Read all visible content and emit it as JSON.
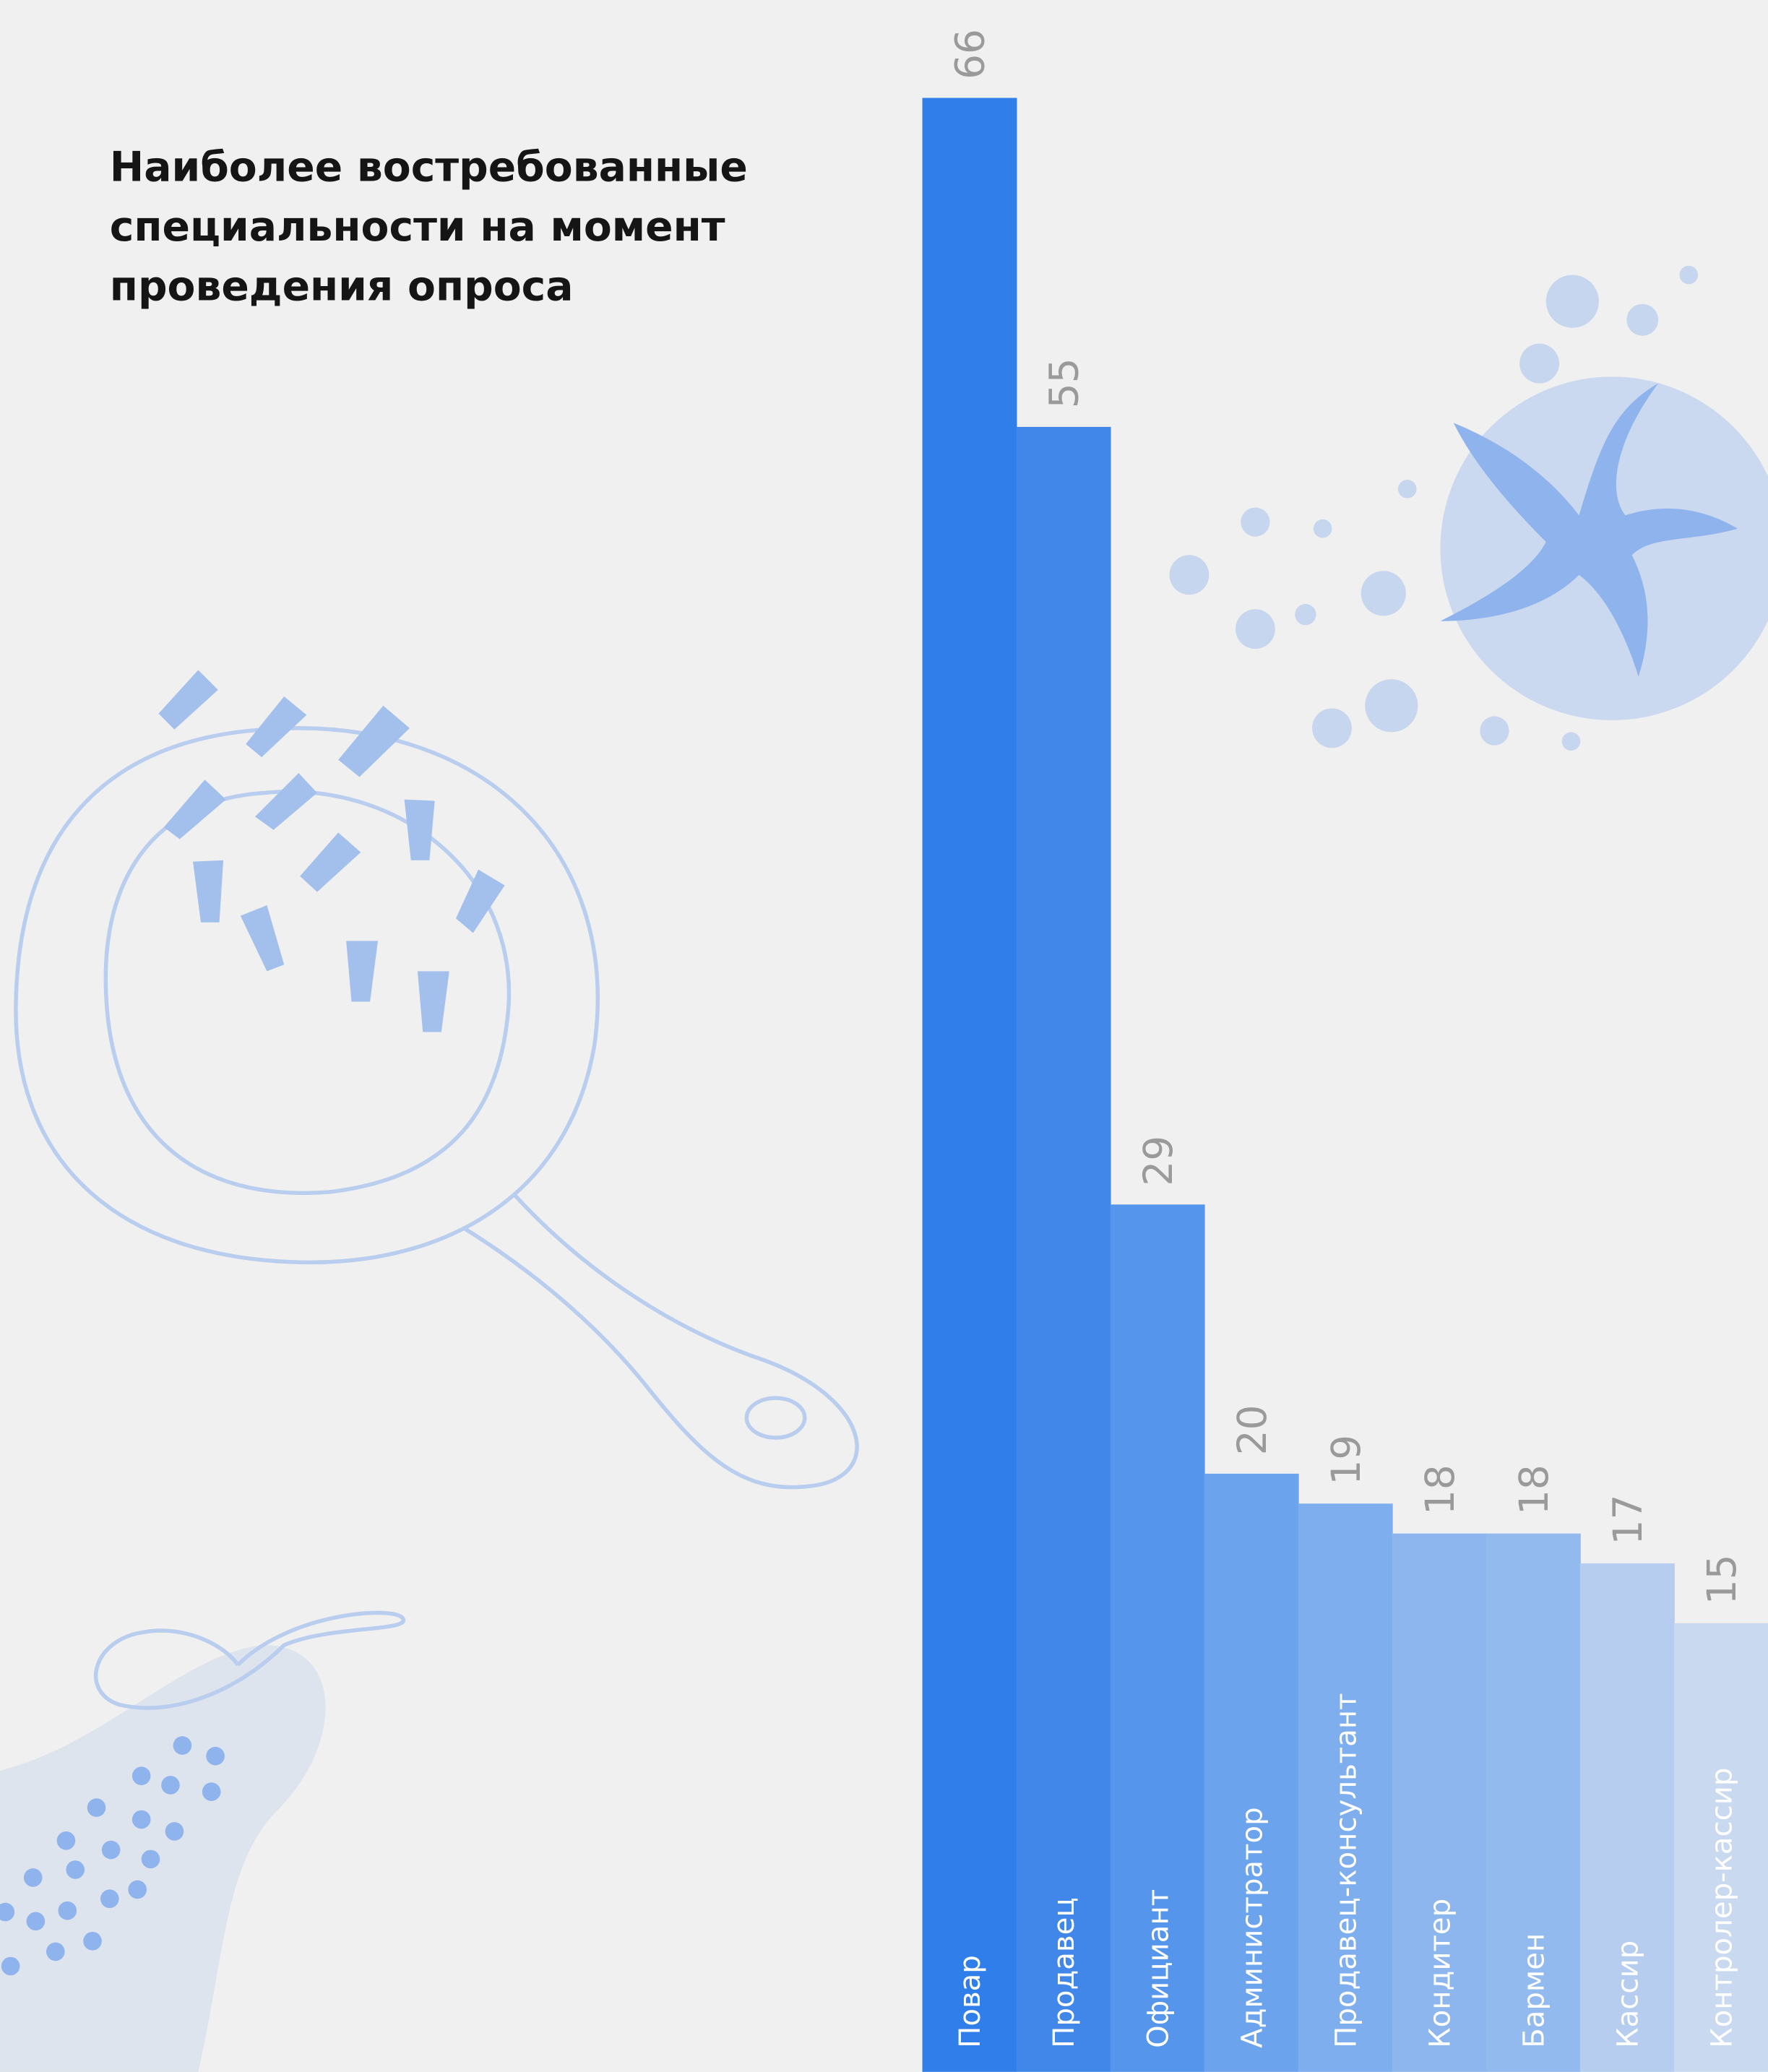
{
  "chart_data": {
    "type": "bar",
    "title": [
      "Наиболее востребованные",
      "специальности на момент",
      "проведения опроса"
    ],
    "categories": [
      "Повар",
      "Продавец",
      "Официант",
      "Администратор",
      "Продавец-консультант",
      "Кондитер",
      "Бармен",
      "Кассир",
      "Контролер-кассир"
    ],
    "values": [
      66,
      55,
      29,
      20,
      19,
      18,
      18,
      17,
      15
    ],
    "colors": [
      "#2f7ee9",
      "#4187ea",
      "#5595eb",
      "#6ba3ed",
      "#7eaeee",
      "#8db6ee",
      "#93baee",
      "#b6cdf0",
      "#c9d9f0"
    ]
  }
}
